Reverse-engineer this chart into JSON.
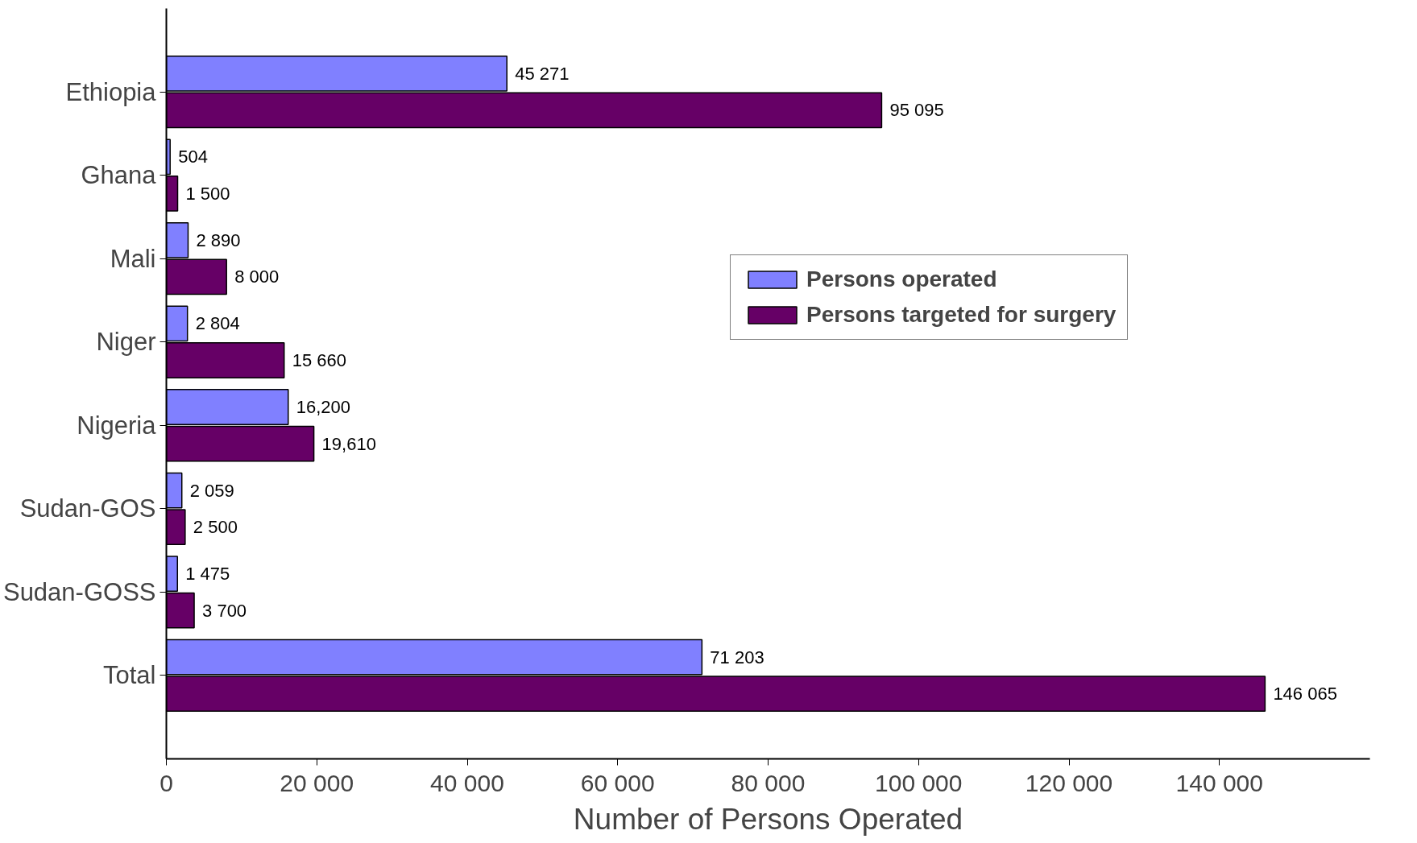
{
  "chart_data": {
    "type": "bar",
    "orientation": "horizontal",
    "xlabel": "Number of Persons Operated",
    "categories": [
      "Ethiopia",
      "Ghana",
      "Mali",
      "Niger",
      "Nigeria",
      "Sudan-GOS",
      "Sudan-GOSS",
      "Total"
    ],
    "series": [
      {
        "name": "Persons operated",
        "color": "#8080ff",
        "values": [
          45271,
          504,
          2890,
          2804,
          16200,
          2059,
          1475,
          71203
        ],
        "value_labels": [
          "45 271",
          "504",
          "2 890",
          "2 804",
          "16,200",
          "2 059",
          "1 475",
          "71 203"
        ]
      },
      {
        "name": "Persons targeted for surgery",
        "color": "#660066",
        "values": [
          95095,
          1500,
          8000,
          15660,
          19610,
          2500,
          3700,
          146065
        ],
        "value_labels": [
          "95 095",
          "1 500",
          "8 000",
          "15 660",
          "19,610",
          "2 500",
          "3 700",
          "146 065"
        ]
      }
    ],
    "xlim": [
      0,
      160000
    ],
    "xticks": [
      0,
      {
        "value": 20000,
        "label": "20 000"
      },
      {
        "value": 40000,
        "label": "40 000"
      },
      {
        "value": 60000,
        "label": "60 000"
      },
      {
        "value": 80000,
        "label": "80 000"
      },
      {
        "value": 100000,
        "label": "100 000"
      },
      {
        "value": 120000,
        "label": "120 000"
      },
      {
        "value": 140000,
        "label": "140 000"
      }
    ],
    "grid": false,
    "legend": "top right"
  }
}
